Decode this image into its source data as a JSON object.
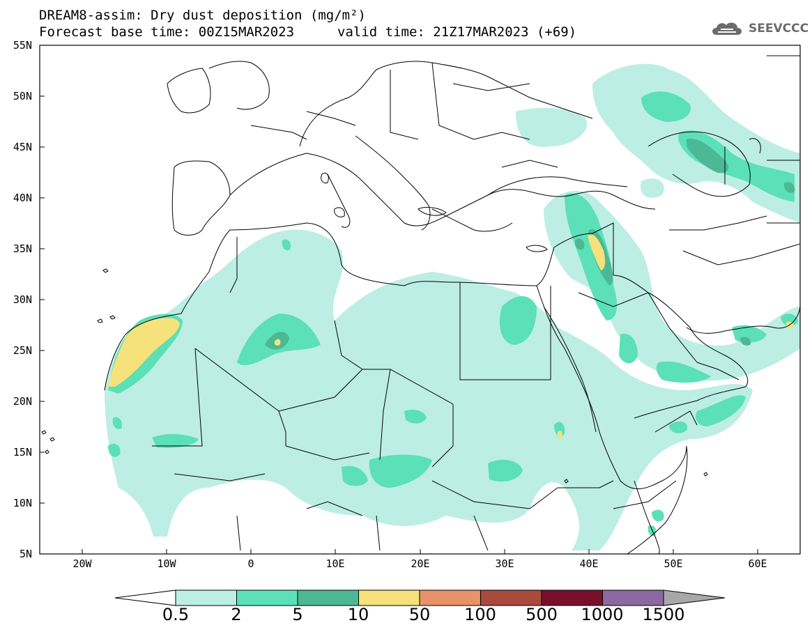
{
  "header": {
    "title_line1": "DREAM8-assim: Dry dust deposition (mg/m²)",
    "title_line2": "Forecast base time: 00Z15MAR2023",
    "valid_time": "valid time: 21Z17MAR2023 (+69)"
  },
  "logo": {
    "text": "SEEVCCC",
    "icon": "cloud-icon"
  },
  "map": {
    "region": "North Africa, Europe and Middle East",
    "lat_labels": [
      "55N",
      "50N",
      "45N",
      "40N",
      "35N",
      "30N",
      "25N",
      "20N",
      "15N",
      "10N",
      "5N"
    ],
    "lon_labels": [
      "20W",
      "10W",
      "0",
      "10E",
      "20E",
      "30E",
      "40E",
      "50E",
      "60E"
    ],
    "lat_range": [
      5,
      55
    ],
    "lon_range": [
      -25,
      65
    ]
  },
  "colorbar": {
    "labels": [
      "0.5",
      "2",
      "5",
      "10",
      "50",
      "100",
      "500",
      "1000",
      "1500"
    ],
    "colors": [
      "#bdeee3",
      "#5ce0b8",
      "#4cb994",
      "#f5e27a",
      "#e8916a",
      "#a84a3c",
      "#7a0f2c",
      "#8a6aa0",
      "#a8a8a8"
    ],
    "left_arrow_color": "#ffffff",
    "right_arrow_color": "#a8a8a8"
  },
  "legend_colors": {
    "level1": "#bdeee3",
    "level2": "#5ce0b8",
    "level3": "#4cb994",
    "level4": "#f5e27a"
  }
}
